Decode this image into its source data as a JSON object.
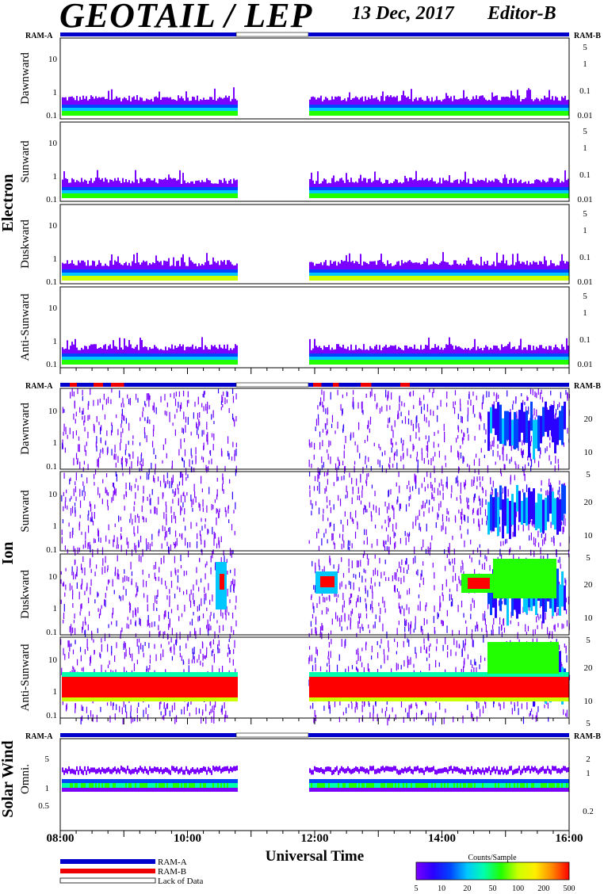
{
  "header": {
    "title": "GEOTAIL / LEP",
    "date": "13 Dec, 2017",
    "editor": "Editor-B"
  },
  "ram_labels": {
    "a": "RAM-A",
    "b": "RAM-B"
  },
  "groups": [
    {
      "name": "Electron",
      "panels": [
        "Dawnward",
        "Sunward",
        "Duskward",
        "Anti-Sunward"
      ]
    },
    {
      "name": "Ion",
      "panels": [
        "Dawnward",
        "Sunward",
        "Duskward",
        "Anti-Sunward"
      ]
    },
    {
      "name": "Solar Wind",
      "panels": [
        "Omni."
      ]
    }
  ],
  "axes": {
    "x_label": "Universal Time",
    "x_ticks": [
      "08:00",
      "10:00",
      "12:00",
      "14:00",
      "16:00"
    ],
    "electron_left_ticks": [
      "10",
      "1",
      "0.1"
    ],
    "electron_right_ticks": [
      "5",
      "1",
      "0.1",
      "0.01"
    ],
    "ion_left_ticks": [
      "10",
      "1",
      "0.1"
    ],
    "ion_right_ticks": [
      "20",
      "10",
      "5"
    ],
    "sw_left_ticks": [
      "5",
      "1",
      "0.5"
    ],
    "sw_right_ticks": [
      "2",
      "1",
      "0.2"
    ]
  },
  "legend": {
    "ram_a": "RAM-A",
    "ram_b": "RAM-B",
    "lack": "Lack of Data",
    "colorbar_title": "Counts/Sample",
    "colorbar_ticks": [
      "5",
      "10",
      "20",
      "50",
      "100",
      "200",
      "500"
    ]
  },
  "colors": {
    "ram_a": "#0000cc",
    "ram_b": "#ee0000",
    "scale": [
      "#7a00ff",
      "#2a00ff",
      "#0044ff",
      "#00c8ff",
      "#00ffaa",
      "#22ff00",
      "#ccff00",
      "#ffee00",
      "#ff8800",
      "#ff0000"
    ]
  },
  "chart_data": {
    "type": "heatmap",
    "title": "GEOTAIL / LEP",
    "xlabel": "Universal Time",
    "x_range": [
      "08:00",
      "16:00"
    ],
    "data_gap": [
      "10:45",
      "11:55"
    ],
    "colorbar": {
      "label": "Counts/Sample",
      "range": [
        5,
        500
      ],
      "scale": "log"
    },
    "panels": [
      {
        "group": "Electron",
        "name": "Dawnward",
        "ylim": [
          0.08,
          40
        ],
        "yscale": "log"
      },
      {
        "group": "Electron",
        "name": "Sunward",
        "ylim": [
          0.08,
          40
        ],
        "yscale": "log"
      },
      {
        "group": "Electron",
        "name": "Duskward",
        "ylim": [
          0.08,
          40
        ],
        "yscale": "log"
      },
      {
        "group": "Electron",
        "name": "Anti-Sunward",
        "ylim": [
          0.08,
          40
        ],
        "yscale": "log"
      },
      {
        "group": "Ion",
        "name": "Dawnward",
        "ylim": [
          0.08,
          40
        ],
        "yscale": "log"
      },
      {
        "group": "Ion",
        "name": "Sunward",
        "ylim": [
          0.08,
          40
        ],
        "yscale": "log"
      },
      {
        "group": "Ion",
        "name": "Duskward",
        "ylim": [
          0.08,
          40
        ],
        "yscale": "log"
      },
      {
        "group": "Ion",
        "name": "Anti-Sunward",
        "ylim": [
          0.08,
          40
        ],
        "yscale": "log"
      },
      {
        "group": "Solar Wind",
        "name": "Omni.",
        "ylim": [
          0.3,
          8
        ],
        "yscale": "log"
      }
    ]
  }
}
